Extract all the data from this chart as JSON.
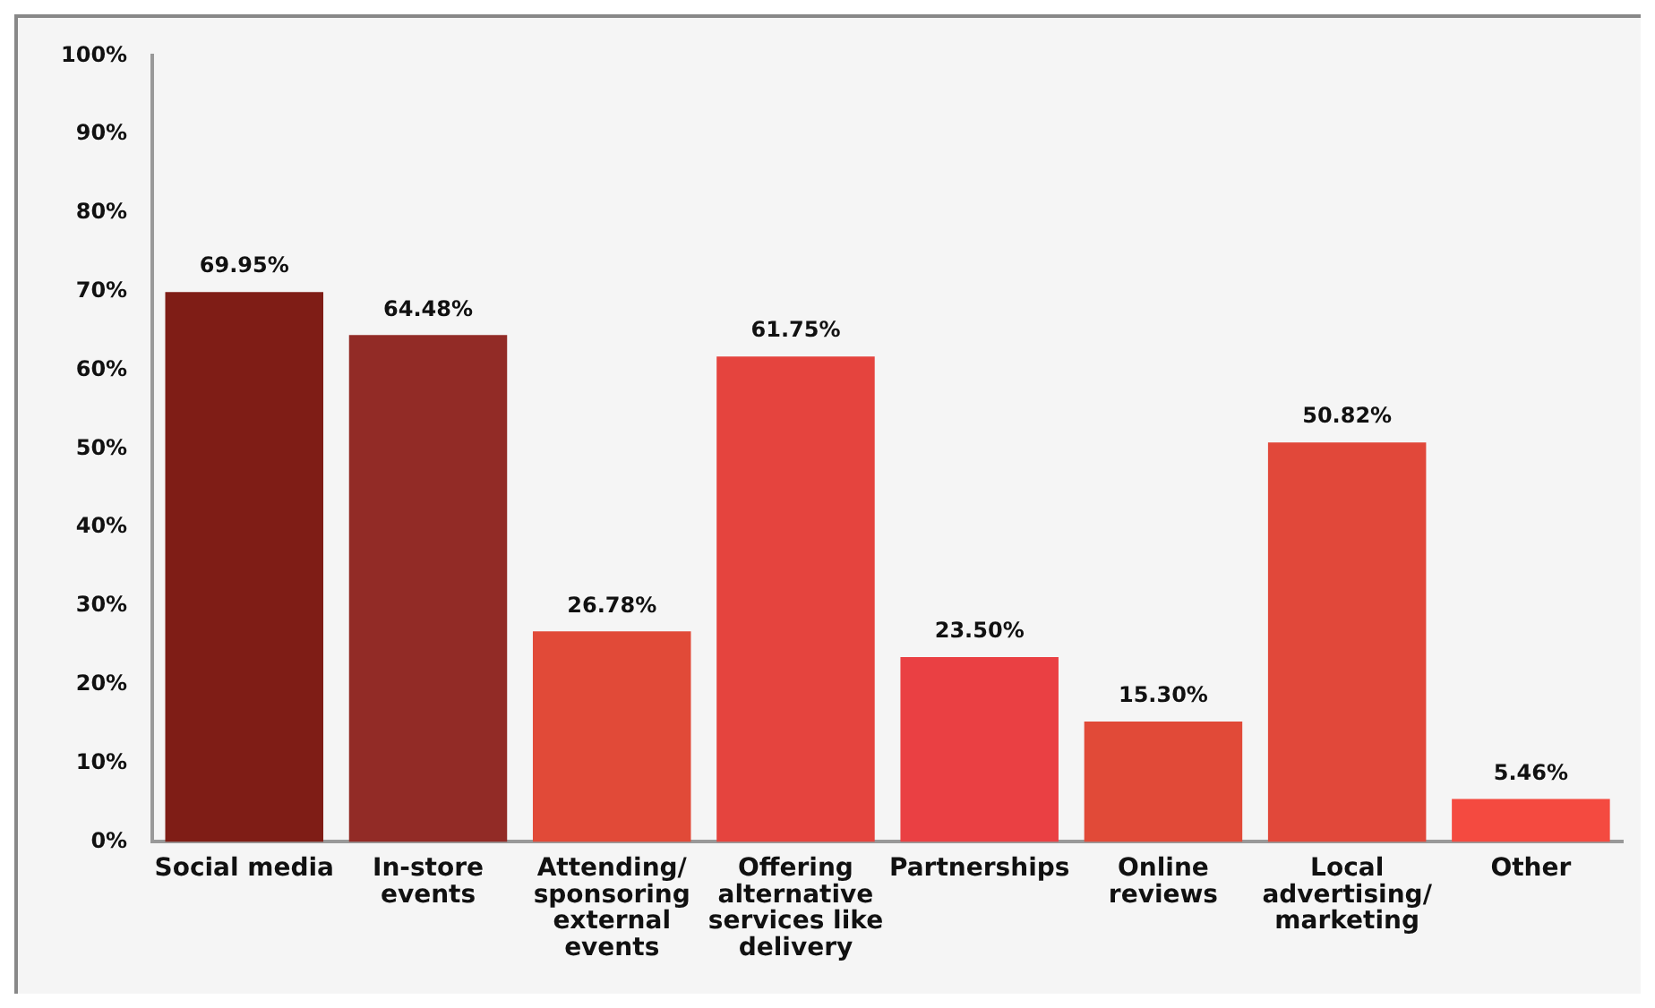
{
  "chart_data": {
    "type": "bar",
    "categories": [
      "Social media",
      "In-store events",
      "Attending/ sponsoring external events",
      "Offering alternative services like delivery",
      "Partnerships",
      "Online reviews",
      "Local advertising/ marketing",
      "Other"
    ],
    "values": [
      69.95,
      64.48,
      26.78,
      61.75,
      23.5,
      15.3,
      50.82,
      5.46
    ],
    "value_labels": [
      "69.95%",
      "64.48%",
      "26.78%",
      "61.75%",
      "23.50%",
      "15.30%",
      "50.82%",
      "5.46%"
    ],
    "colors": [
      "#7f1d16",
      "#922b26",
      "#e14a38",
      "#e5443e",
      "#ea4043",
      "#e14a38",
      "#e1483a",
      "#f44a40"
    ],
    "ylim": [
      0,
      100
    ],
    "yticks": [
      {
        "value": 0,
        "label": "0%"
      },
      {
        "value": 10,
        "label": "10%"
      },
      {
        "value": 20,
        "label": "20%"
      },
      {
        "value": 30,
        "label": "30%"
      },
      {
        "value": 40,
        "label": "40%"
      },
      {
        "value": 50,
        "label": "50%"
      },
      {
        "value": 60,
        "label": "60%"
      },
      {
        "value": 70,
        "label": "70%"
      },
      {
        "value": 80,
        "label": "80%"
      },
      {
        "value": 90,
        "label": "90%"
      },
      {
        "value": 100,
        "label": "100%"
      }
    ],
    "grid": false,
    "legend": false
  }
}
